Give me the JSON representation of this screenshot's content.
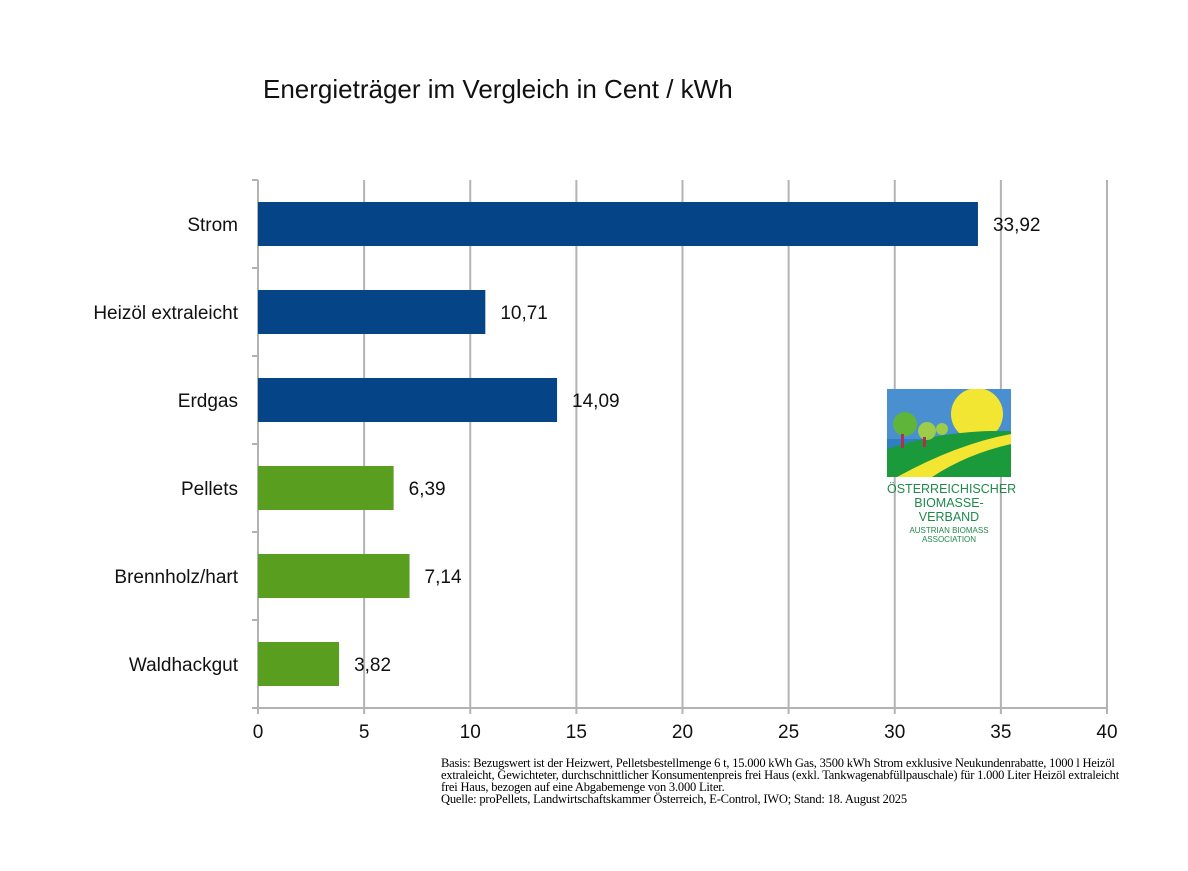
{
  "chart_data": {
    "type": "bar",
    "orientation": "horizontal",
    "title": "Energieträger im Vergleich in Cent / kWh",
    "categories": [
      "Strom",
      "Heizöl extraleicht",
      "Erdgas",
      "Pellets",
      "Brennholz/hart",
      "Waldhackgut"
    ],
    "values": [
      33.92,
      10.71,
      14.09,
      6.39,
      7.14,
      3.82
    ],
    "value_labels": [
      "33,92",
      "10,71",
      "14,09",
      "6,39",
      "7,14",
      "3,82"
    ],
    "bar_colors": [
      "#044487",
      "#044487",
      "#044487",
      "#5a9e20",
      "#5a9e20",
      "#5a9e20"
    ],
    "xlim": [
      0,
      40
    ],
    "x_ticks": [
      "0",
      "5",
      "10",
      "15",
      "20",
      "25",
      "30",
      "35",
      "40"
    ],
    "grid": true,
    "grid_color": "#b3b3b3"
  },
  "note": {
    "basis": "Basis: Bezugswert ist der Heizwert, Pelletsbestellmenge 6 t, 15.000 kWh Gas, 3500 kWh Strom exklusive Neukundenrabatte, 1000 l Heizöl extraleicht, Gewichteter, durchschnittlicher Konsumentenpreis frei Haus (exkl. Tankwagenabfüllpauschale) für 1.000 Liter Heizöl extraleicht frei Haus, bezogen auf eine Abgabemenge von 3.000 Liter.",
    "source": "Quelle: proPellets, Landwirtschaftskammer Österreich, E-Control, IWO; Stand: 18. August 2025"
  },
  "logo": {
    "line1": "Österreichischer",
    "line2": "Biomasse-Verband",
    "line3": "Austrian Biomass Association"
  }
}
